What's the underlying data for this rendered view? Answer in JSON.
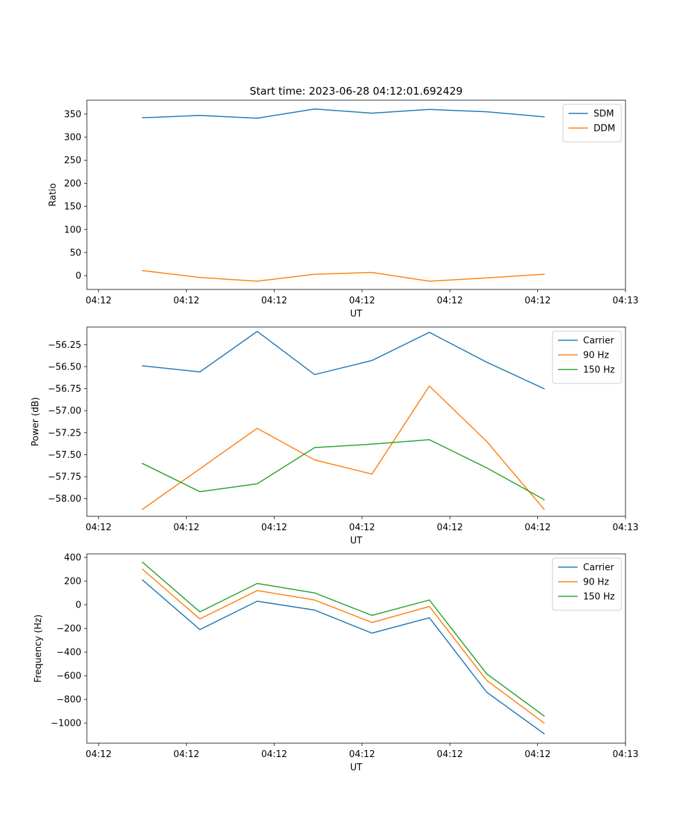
{
  "chart_data": [
    {
      "type": "line",
      "title": "Start time: 2023-06-28 04:12:01.692429",
      "xlabel": "UT",
      "ylabel": "Ratio",
      "ylim": [
        -30,
        380
      ],
      "yticks": [
        0,
        50,
        100,
        150,
        200,
        250,
        300,
        350
      ],
      "ytick_labels": [
        "0",
        "50",
        "100",
        "150",
        "200",
        "250",
        "300",
        "350"
      ],
      "xlim": [
        0.4,
        9.6
      ],
      "xticks": [
        0.6,
        2.1,
        3.6,
        5.1,
        6.6,
        8.1,
        9.6
      ],
      "xtick_labels": [
        "04:12",
        "04:12",
        "04:12",
        "04:12",
        "04:12",
        "04:12",
        "04:13"
      ],
      "x": [
        1.35,
        2.33,
        3.31,
        4.29,
        5.27,
        6.25,
        7.23,
        8.21
      ],
      "series": [
        {
          "name": "SDM",
          "color": "#1f77b4",
          "values": [
            342,
            347,
            341,
            361,
            352,
            360,
            355,
            344
          ]
        },
        {
          "name": "DDM",
          "color": "#ff7f0e",
          "values": [
            11,
            -4,
            -12,
            3,
            7,
            -12,
            -5,
            3
          ]
        }
      ],
      "legend": "upper right",
      "grid": false
    },
    {
      "type": "line",
      "title": "",
      "xlabel": "UT",
      "ylabel": "Power (dB)",
      "ylim": [
        -58.2,
        -56.05
      ],
      "yticks": [
        -58.0,
        -57.75,
        -57.5,
        -57.25,
        -57.0,
        -56.75,
        -56.5,
        -56.25
      ],
      "ytick_labels": [
        "−58.00",
        "−57.75",
        "−57.50",
        "−57.25",
        "−57.00",
        "−56.75",
        "−56.50",
        "−56.25"
      ],
      "xlim": [
        0.4,
        9.6
      ],
      "xticks": [
        0.6,
        2.1,
        3.6,
        5.1,
        6.6,
        8.1,
        9.6
      ],
      "xtick_labels": [
        "04:12",
        "04:12",
        "04:12",
        "04:12",
        "04:12",
        "04:12",
        "04:13"
      ],
      "x": [
        1.35,
        2.33,
        3.31,
        4.29,
        5.27,
        6.25,
        7.23,
        8.21
      ],
      "series": [
        {
          "name": "Carrier",
          "color": "#1f77b4",
          "values": [
            -56.49,
            -56.56,
            -56.1,
            -56.59,
            -56.43,
            -56.11,
            -56.45,
            -56.75
          ]
        },
        {
          "name": "90 Hz",
          "color": "#ff7f0e",
          "values": [
            -58.12,
            -57.66,
            -57.2,
            -57.56,
            -57.72,
            -56.72,
            -57.35,
            -58.12
          ]
        },
        {
          "name": "150 Hz",
          "color": "#2ca02c",
          "values": [
            -57.6,
            -57.92,
            -57.83,
            -57.42,
            -57.38,
            -57.33,
            -57.65,
            -58.01
          ]
        }
      ],
      "legend": "upper right",
      "grid": false
    },
    {
      "type": "line",
      "title": "",
      "xlabel": "UT",
      "ylabel": "Frequency (Hz)",
      "ylim": [
        -1170,
        430
      ],
      "yticks": [
        -1000,
        -800,
        -600,
        -400,
        -200,
        0,
        200,
        400
      ],
      "ytick_labels": [
        "−1000",
        "−800",
        "−600",
        "−400",
        "−200",
        "0",
        "200",
        "400"
      ],
      "xlim": [
        0.4,
        9.6
      ],
      "xticks": [
        0.6,
        2.1,
        3.6,
        5.1,
        6.6,
        8.1,
        9.6
      ],
      "xtick_labels": [
        "04:12",
        "04:12",
        "04:12",
        "04:12",
        "04:12",
        "04:12",
        "04:13"
      ],
      "x": [
        1.35,
        2.33,
        3.31,
        4.29,
        5.27,
        6.25,
        7.23,
        8.21
      ],
      "series": [
        {
          "name": "Carrier",
          "color": "#1f77b4",
          "values": [
            210,
            -210,
            30,
            -45,
            -240,
            -110,
            -740,
            -1090
          ]
        },
        {
          "name": "90 Hz",
          "color": "#ff7f0e",
          "values": [
            300,
            -120,
            120,
            40,
            -150,
            -15,
            -640,
            -1000
          ]
        },
        {
          "name": "150 Hz",
          "color": "#2ca02c",
          "values": [
            360,
            -60,
            180,
            100,
            -90,
            40,
            -585,
            -940
          ]
        }
      ],
      "legend": "upper right",
      "grid": false
    }
  ]
}
